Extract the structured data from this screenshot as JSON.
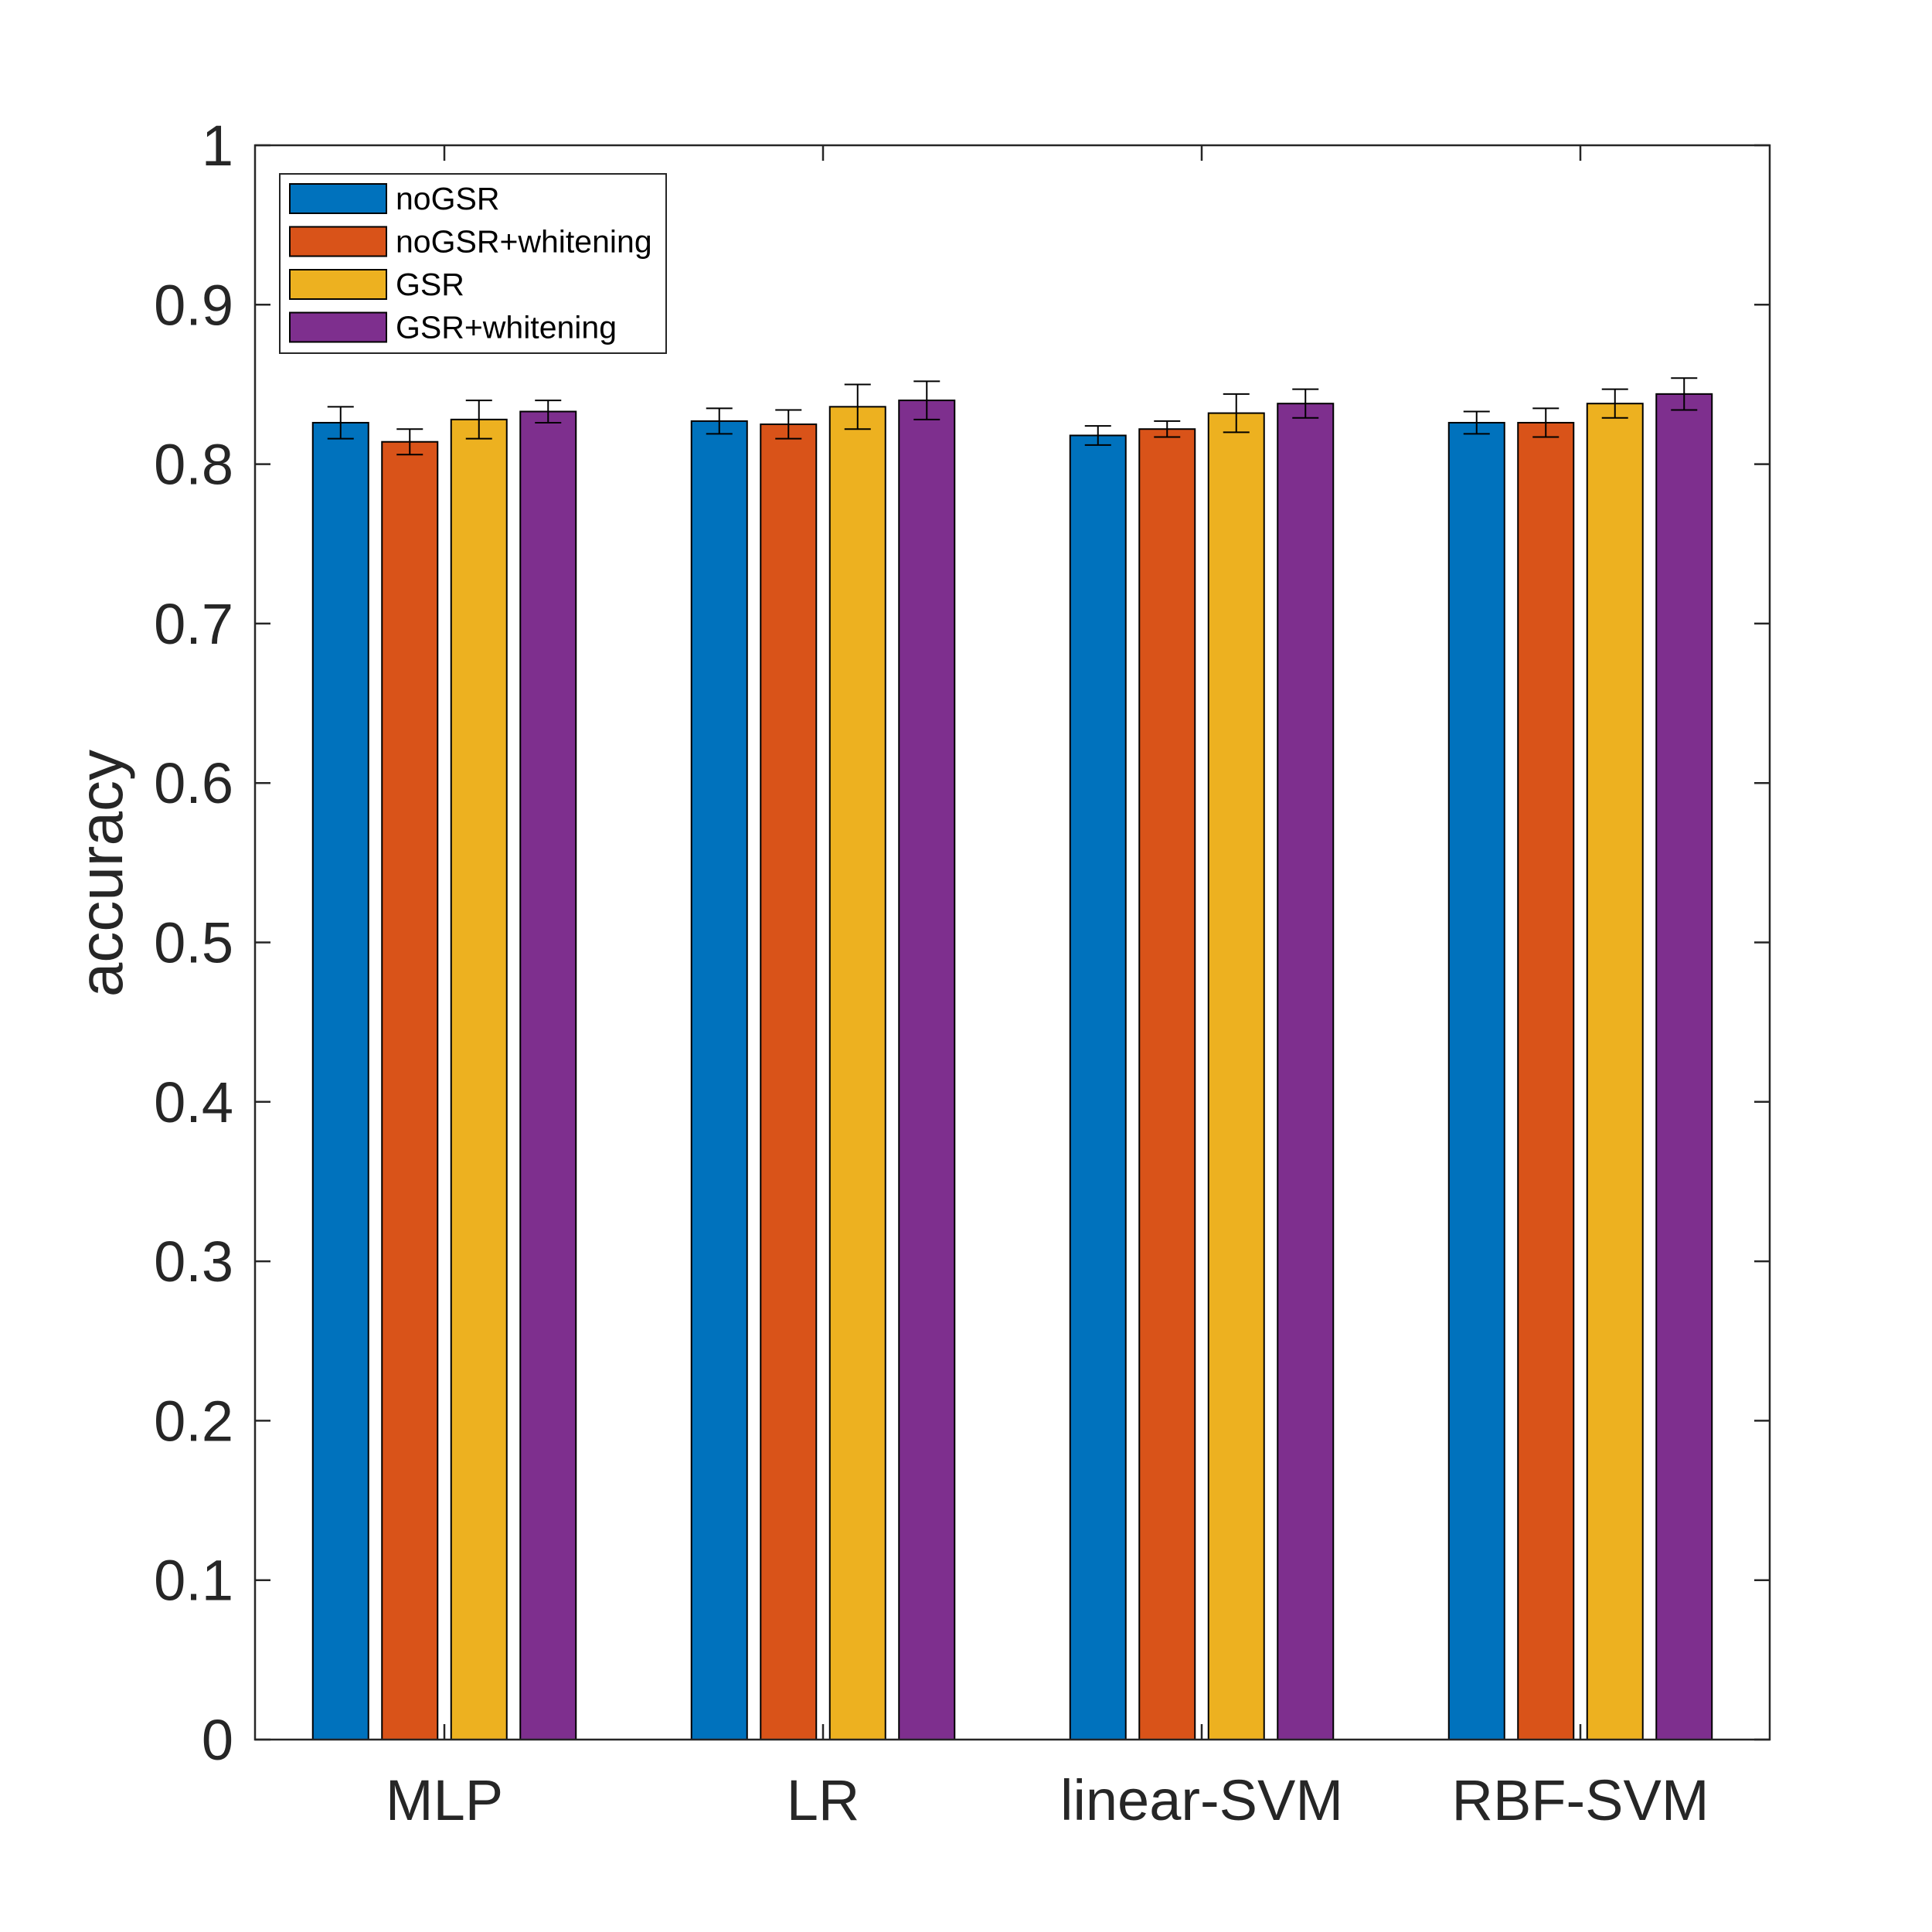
{
  "chart_data": {
    "type": "bar",
    "title": "",
    "xlabel": "",
    "ylabel": "accuracy",
    "ylim": [
      0,
      1
    ],
    "yticks": [
      0,
      0.1,
      0.2,
      0.3,
      0.4,
      0.5,
      0.6,
      0.7,
      0.8,
      0.9,
      1
    ],
    "ytick_labels": [
      "0",
      "0.1",
      "0.2",
      "0.3",
      "0.4",
      "0.5",
      "0.6",
      "0.7",
      "0.8",
      "0.9",
      "1"
    ],
    "categories": [
      "MLP",
      "LR",
      "linear-SVM",
      "RBF-SVM"
    ],
    "legend_position": "top-left",
    "grid": false,
    "series": [
      {
        "name": "noGSR",
        "color": "#0072BD",
        "values": [
          0.826,
          0.827,
          0.818,
          0.826
        ],
        "errors": [
          0.01,
          0.008,
          0.006,
          0.007
        ]
      },
      {
        "name": "noGSR+whitening",
        "color": "#D95319",
        "values": [
          0.814,
          0.825,
          0.822,
          0.826
        ],
        "errors": [
          0.008,
          0.009,
          0.005,
          0.009
        ]
      },
      {
        "name": "GSR",
        "color": "#EDB120",
        "values": [
          0.828,
          0.836,
          0.832,
          0.838
        ],
        "errors": [
          0.012,
          0.014,
          0.012,
          0.009
        ]
      },
      {
        "name": "GSR+whitening",
        "color": "#7E2F8E",
        "values": [
          0.833,
          0.84,
          0.838,
          0.844
        ],
        "errors": [
          0.007,
          0.012,
          0.009,
          0.01
        ]
      }
    ]
  }
}
